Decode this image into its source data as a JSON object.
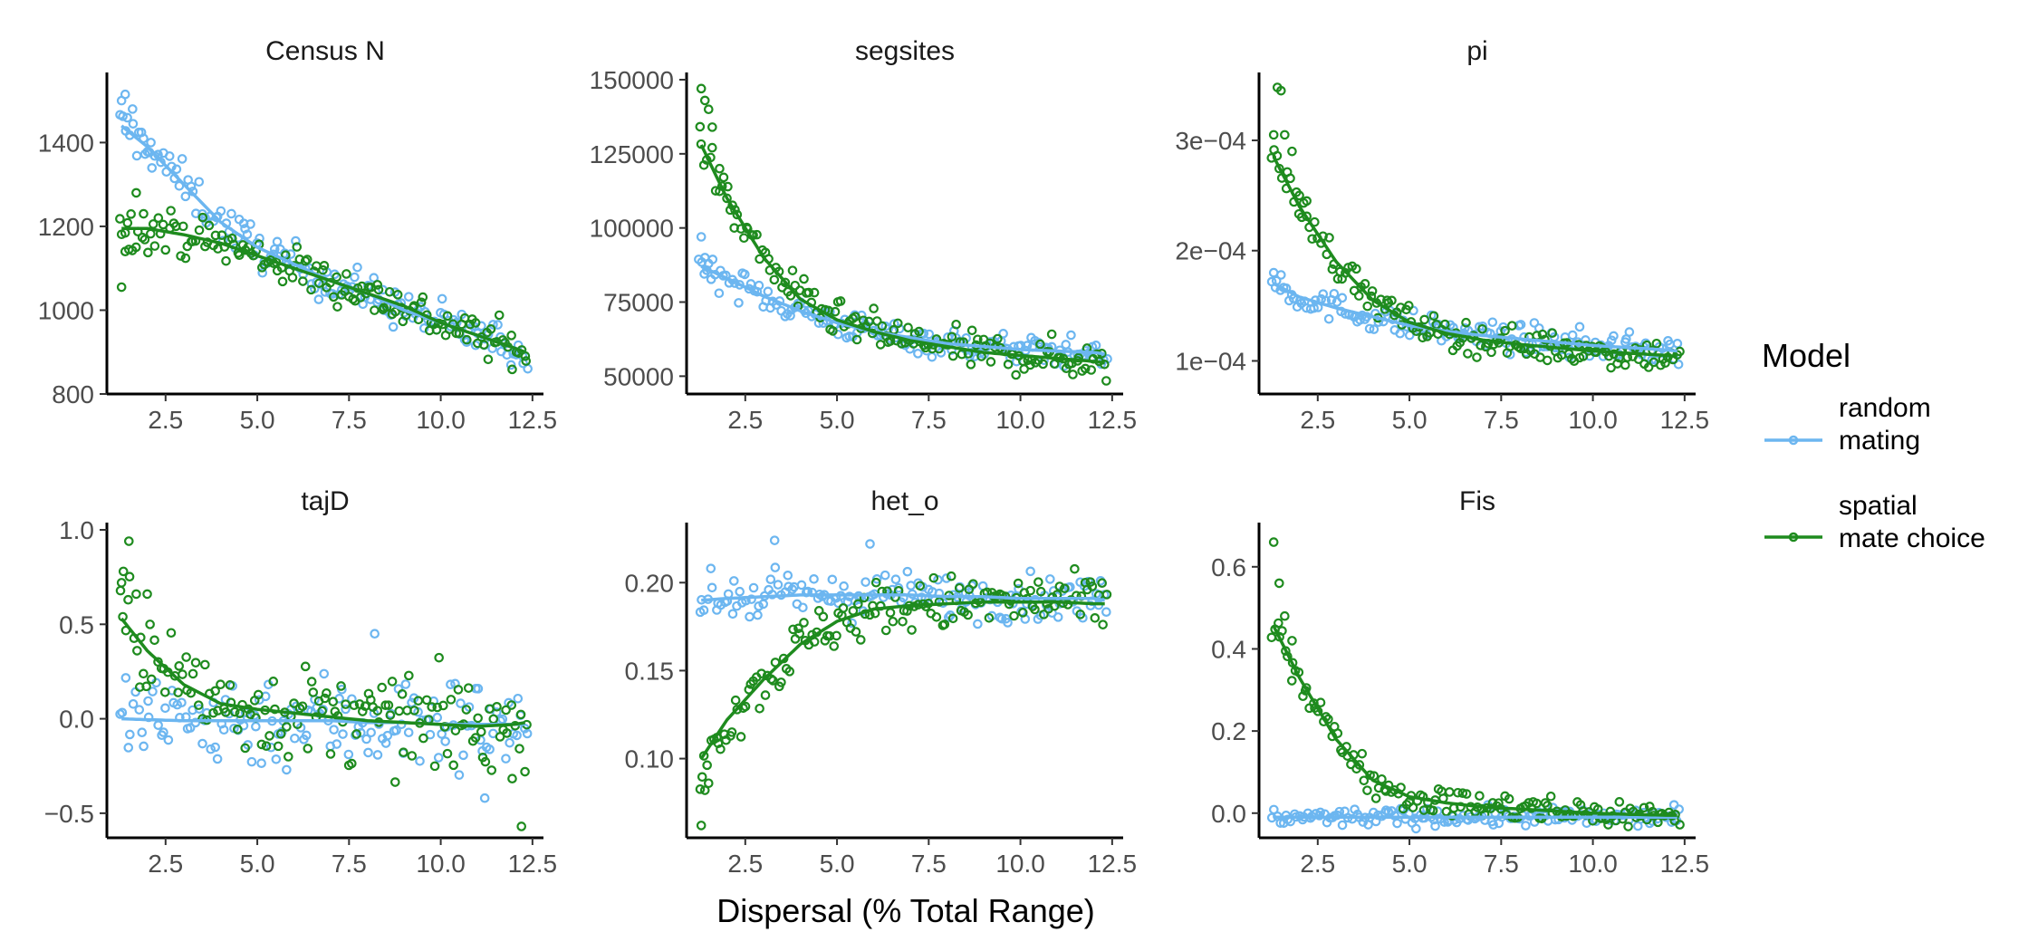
{
  "chart_data": {
    "type": "scatter",
    "xlabel": "Dispersal (% Total Range)",
    "legend": {
      "title": "Model",
      "position": "right",
      "entries": [
        {
          "label_line1": "random",
          "label_line2": "mating",
          "color": "#6CB6F0"
        },
        {
          "label_line1": "spatial",
          "label_line2": "mate choice",
          "color": "#1E8B1E"
        }
      ]
    },
    "colors": {
      "random_mating": "#6CB6F0",
      "spatial_mate_choice": "#1E8B1E"
    },
    "x_range": [
      0.9,
      12.8
    ],
    "x_ticks": [
      "2.5",
      "5.0",
      "7.5",
      "10.0",
      "12.5"
    ],
    "x_tick_values": [
      2.5,
      5.0,
      7.5,
      10.0,
      12.5
    ],
    "panels": [
      {
        "title": "Census N",
        "ylim": [
          800,
          1550
        ],
        "y_ticks": [
          800,
          1000,
          1200,
          1400
        ],
        "y_tick_labels": [
          "800",
          "1000",
          "1200",
          "1400"
        ],
        "series": [
          {
            "name": "random mating",
            "trend": [
              [
                1.3,
                1440
              ],
              [
                2,
                1390
              ],
              [
                3,
                1300
              ],
              [
                4,
                1210
              ],
              [
                5,
                1150
              ],
              [
                6,
                1110
              ],
              [
                7,
                1070
              ],
              [
                8,
                1040
              ],
              [
                9,
                1000
              ],
              [
                10,
                970
              ],
              [
                11,
                940
              ],
              [
                12,
                910
              ],
              [
                12.3,
                900
              ]
            ],
            "noise": 35,
            "outliers": [
              [
                1.3,
                1500
              ],
              [
                1.4,
                1515
              ],
              [
                1.6,
                1480
              ],
              [
                1.9,
                1410
              ],
              [
                2.1,
                1400
              ]
            ]
          },
          {
            "name": "spatial mate choice",
            "trend": [
              [
                1.3,
                1195
              ],
              [
                2,
                1195
              ],
              [
                3,
                1180
              ],
              [
                4,
                1160
              ],
              [
                5,
                1130
              ],
              [
                6,
                1100
              ],
              [
                7,
                1070
              ],
              [
                8,
                1040
              ],
              [
                9,
                1010
              ],
              [
                10,
                970
              ],
              [
                11,
                940
              ],
              [
                12,
                910
              ],
              [
                12.3,
                900
              ]
            ],
            "noise": 35,
            "outliers": [
              [
                1.3,
                1055
              ],
              [
                1.4,
                1140
              ],
              [
                1.5,
                1145
              ],
              [
                1.7,
                1280
              ],
              [
                1.9,
                1230
              ]
            ]
          }
        ]
      },
      {
        "title": "segsites",
        "ylim": [
          44000,
          150000
        ],
        "y_ticks": [
          50000,
          75000,
          100000,
          125000,
          150000
        ],
        "y_tick_labels": [
          "50000",
          "75000",
          "100000",
          "125000",
          "150000"
        ],
        "series": [
          {
            "name": "random mating",
            "trend": [
              [
                1.3,
                87000
              ],
              [
                2,
                83000
              ],
              [
                3,
                77000
              ],
              [
                4,
                72000
              ],
              [
                5,
                68000
              ],
              [
                6,
                65000
              ],
              [
                7,
                63000
              ],
              [
                8,
                61000
              ],
              [
                9,
                60000
              ],
              [
                10,
                59000
              ],
              [
                11,
                58500
              ],
              [
                12,
                58000
              ],
              [
                12.3,
                57500
              ]
            ],
            "noise": 3500,
            "outliers": [
              [
                1.3,
                97000
              ],
              [
                1.4,
                90000
              ],
              [
                1.5,
                88000
              ]
            ]
          },
          {
            "name": "spatial mate choice",
            "trend": [
              [
                1.3,
                128000
              ],
              [
                2,
                110000
              ],
              [
                3,
                90000
              ],
              [
                4,
                76000
              ],
              [
                5,
                69000
              ],
              [
                6,
                65000
              ],
              [
                7,
                62000
              ],
              [
                8,
                60000
              ],
              [
                9,
                58000
              ],
              [
                10,
                57000
              ],
              [
                11,
                56000
              ],
              [
                12,
                55000
              ],
              [
                12.3,
                54500
              ]
            ],
            "noise": 4500,
            "outliers": [
              [
                1.3,
                147000
              ],
              [
                1.4,
                143000
              ],
              [
                1.5,
                140000
              ],
              [
                1.6,
                134000
              ],
              [
                1.8,
                120000
              ],
              [
                2.0,
                110000
              ],
              [
                2.2,
                100000
              ]
            ]
          }
        ]
      },
      {
        "title": "pi",
        "ylim": [
          7e-05,
          0.000355
        ],
        "y_ticks": [
          0.0001,
          0.0002,
          0.0003
        ],
        "y_tick_labels": [
          "1e−04",
          "2e−04",
          "3e−04"
        ],
        "series": [
          {
            "name": "random mating",
            "trend": [
              [
                1.3,
                0.00017
              ],
              [
                2,
                0.000158
              ],
              [
                3,
                0.000148
              ],
              [
                4,
                0.00014
              ],
              [
                5,
                0.000132
              ],
              [
                6,
                0.000127
              ],
              [
                7,
                0.000123
              ],
              [
                8,
                0.00012
              ],
              [
                9,
                0.000117
              ],
              [
                10,
                0.000114
              ],
              [
                11,
                0.000112
              ],
              [
                12,
                0.00011
              ],
              [
                12.3,
                0.000109
              ]
            ],
            "noise": 9e-06,
            "outliers": [
              [
                1.3,
                0.00018
              ],
              [
                1.5,
                0.000178
              ]
            ]
          },
          {
            "name": "spatial mate choice",
            "trend": [
              [
                1.3,
                0.000285
              ],
              [
                2,
                0.00024
              ],
              [
                3,
                0.00019
              ],
              [
                4,
                0.000155
              ],
              [
                5,
                0.000135
              ],
              [
                6,
                0.000125
              ],
              [
                7,
                0.000119
              ],
              [
                8,
                0.000115
              ],
              [
                9,
                0.000112
              ],
              [
                10,
                0.000109
              ],
              [
                11,
                0.000107
              ],
              [
                12,
                0.000105
              ],
              [
                12.3,
                0.000104
              ]
            ],
            "noise": 1e-05,
            "outliers": [
              [
                1.3,
                0.000305
              ],
              [
                1.4,
                0.000348
              ],
              [
                1.5,
                0.000345
              ],
              [
                1.6,
                0.000305
              ],
              [
                1.8,
                0.00029
              ],
              [
                2.0,
                0.00025
              ],
              [
                2.2,
                0.000245
              ]
            ]
          }
        ]
      },
      {
        "title": "tajD",
        "ylim": [
          -0.63,
          1.0
        ],
        "y_ticks": [
          -0.5,
          0.0,
          0.5,
          1.0
        ],
        "y_tick_labels": [
          "−0.5",
          "0.0",
          "0.5",
          "1.0"
        ],
        "series": [
          {
            "name": "random mating",
            "trend": [
              [
                1.3,
                0.0
              ],
              [
                2,
                -0.005
              ],
              [
                3,
                -0.01
              ],
              [
                4,
                -0.01
              ],
              [
                5,
                -0.01
              ],
              [
                6,
                -0.01
              ],
              [
                7,
                -0.01
              ],
              [
                8,
                -0.02
              ],
              [
                9,
                -0.02
              ],
              [
                10,
                -0.03
              ],
              [
                11,
                -0.03
              ],
              [
                12,
                -0.03
              ],
              [
                12.3,
                -0.03
              ]
            ],
            "noise": 0.18,
            "outliers": [
              [
                8.2,
                0.45
              ],
              [
                11.2,
                -0.42
              ]
            ]
          },
          {
            "name": "spatial mate choice",
            "trend": [
              [
                1.3,
                0.53
              ],
              [
                2,
                0.36
              ],
              [
                3,
                0.18
              ],
              [
                4,
                0.08
              ],
              [
                5,
                0.05
              ],
              [
                6,
                0.03
              ],
              [
                7,
                0.01
              ],
              [
                8,
                -0.01
              ],
              [
                9,
                -0.02
              ],
              [
                10,
                -0.03
              ],
              [
                11,
                -0.04
              ],
              [
                12,
                -0.03
              ],
              [
                12.3,
                -0.02
              ]
            ],
            "noise": 0.17,
            "outliers": [
              [
                1.3,
                0.72
              ],
              [
                1.35,
                0.78
              ],
              [
                1.5,
                0.94
              ],
              [
                1.7,
                0.66
              ],
              [
                2.0,
                0.66
              ],
              [
                12.2,
                -0.57
              ]
            ]
          }
        ]
      },
      {
        "title": "het_o",
        "ylim": [
          0.055,
          0.23
        ],
        "y_ticks": [
          0.1,
          0.15,
          0.2
        ],
        "y_tick_labels": [
          "0.10",
          "0.15",
          "0.20"
        ],
        "series": [
          {
            "name": "random mating",
            "trend": [
              [
                1.3,
                0.19
              ],
              [
                2,
                0.191
              ],
              [
                3,
                0.192
              ],
              [
                4,
                0.193
              ],
              [
                5,
                0.193
              ],
              [
                6,
                0.193
              ],
              [
                7,
                0.193
              ],
              [
                8,
                0.192
              ],
              [
                9,
                0.192
              ],
              [
                10,
                0.191
              ],
              [
                11,
                0.191
              ],
              [
                12,
                0.191
              ],
              [
                12.3,
                0.19
              ]
            ],
            "noise": 0.009,
            "outliers": [
              [
                3.3,
                0.224
              ],
              [
                5.9,
                0.222
              ]
            ]
          },
          {
            "name": "spatial mate choice",
            "trend": [
              [
                1.3,
                0.1
              ],
              [
                2,
                0.122
              ],
              [
                3,
                0.145
              ],
              [
                4,
                0.165
              ],
              [
                5,
                0.178
              ],
              [
                6,
                0.185
              ],
              [
                7,
                0.187
              ],
              [
                8,
                0.188
              ],
              [
                9,
                0.189
              ],
              [
                10,
                0.189
              ],
              [
                11,
                0.189
              ],
              [
                12,
                0.188
              ],
              [
                12.3,
                0.188
              ]
            ],
            "noise": 0.011,
            "outliers": [
              [
                1.3,
                0.062
              ],
              [
                1.4,
                0.082
              ],
              [
                1.5,
                0.086
              ]
            ]
          }
        ]
      },
      {
        "title": "Fis",
        "ylim": [
          -0.06,
          0.69
        ],
        "y_ticks": [
          0.0,
          0.2,
          0.4,
          0.6
        ],
        "y_tick_labels": [
          "0.0",
          "0.2",
          "0.4",
          "0.6"
        ],
        "series": [
          {
            "name": "random mating",
            "trend": [
              [
                1.3,
                -0.01
              ],
              [
                2,
                -0.01
              ],
              [
                3,
                -0.01
              ],
              [
                4,
                -0.01
              ],
              [
                5,
                -0.01
              ],
              [
                6,
                -0.01
              ],
              [
                7,
                -0.01
              ],
              [
                8,
                -0.01
              ],
              [
                9,
                -0.01
              ],
              [
                10,
                -0.01
              ],
              [
                11,
                -0.01
              ],
              [
                12,
                -0.01
              ],
              [
                12.3,
                -0.01
              ]
            ],
            "noise": 0.015,
            "outliers": []
          },
          {
            "name": "spatial mate choice",
            "trend": [
              [
                1.3,
                0.455
              ],
              [
                2,
                0.33
              ],
              [
                3,
                0.18
              ],
              [
                4,
                0.08
              ],
              [
                5,
                0.04
              ],
              [
                6,
                0.025
              ],
              [
                7,
                0.015
              ],
              [
                8,
                0.01
              ],
              [
                9,
                0.005
              ],
              [
                10,
                0.0
              ],
              [
                11,
                -0.003
              ],
              [
                12,
                -0.005
              ],
              [
                12.3,
                -0.005
              ]
            ],
            "noise": 0.025,
            "outliers": [
              [
                1.3,
                0.66
              ],
              [
                1.45,
                0.56
              ],
              [
                1.6,
                0.48
              ],
              [
                1.8,
                0.42
              ]
            ]
          }
        ]
      }
    ]
  }
}
